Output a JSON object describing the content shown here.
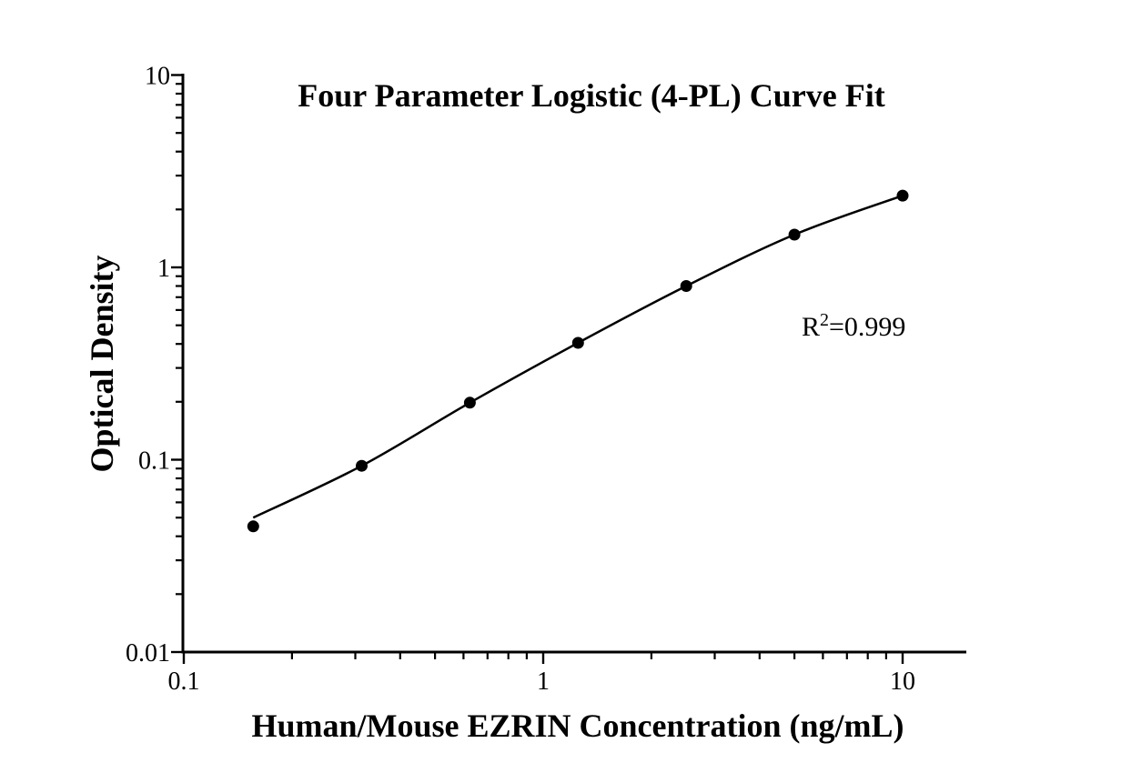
{
  "chart": {
    "title": "Four Parameter Logistic (4-PL) Curve Fit",
    "x_axis_title": "Human/Mouse EZRIN Concentration (ng/mL)",
    "y_axis_title": "Optical Density",
    "annotation": {
      "base": "R",
      "sup": "2",
      "rest": "=0.999"
    }
  },
  "chart_data": {
    "type": "scatter",
    "subtype": "log-log standard curve with 4-PL fitted line",
    "title": "Four Parameter Logistic (4-PL) Curve Fit",
    "xlabel": "Human/Mouse EZRIN Concentration (ng/mL)",
    "ylabel": "Optical Density",
    "r_squared": "R2=0.999",
    "x": [
      0.156,
      0.3125,
      0.625,
      1.25,
      2.5,
      5,
      10
    ],
    "series": [
      {
        "name": "Optical Density",
        "values": [
          0.045,
          0.093,
          0.198,
          0.405,
          0.8,
          1.48,
          2.36
        ]
      }
    ],
    "fit_curve_values": [
      0.05,
      0.093,
      0.198,
      0.405,
      0.8,
      1.48,
      2.36
    ],
    "xscale": "log",
    "yscale": "log",
    "xlim": [
      0.1,
      15
    ],
    "ylim": [
      0.01,
      10
    ],
    "x_ticks": [
      0.1,
      1,
      10
    ],
    "x_tick_labels": [
      "0.1",
      "1",
      "10"
    ],
    "y_ticks": [
      0.01,
      0.1,
      1,
      10
    ],
    "y_tick_labels": [
      "0.01",
      "0.1",
      "1",
      "10"
    ],
    "grid": false,
    "legend": false,
    "colors": {
      "curve": "#000000",
      "marker": "#000000",
      "axis": "#000000",
      "text": "#000000",
      "background": "#ffffff"
    }
  }
}
